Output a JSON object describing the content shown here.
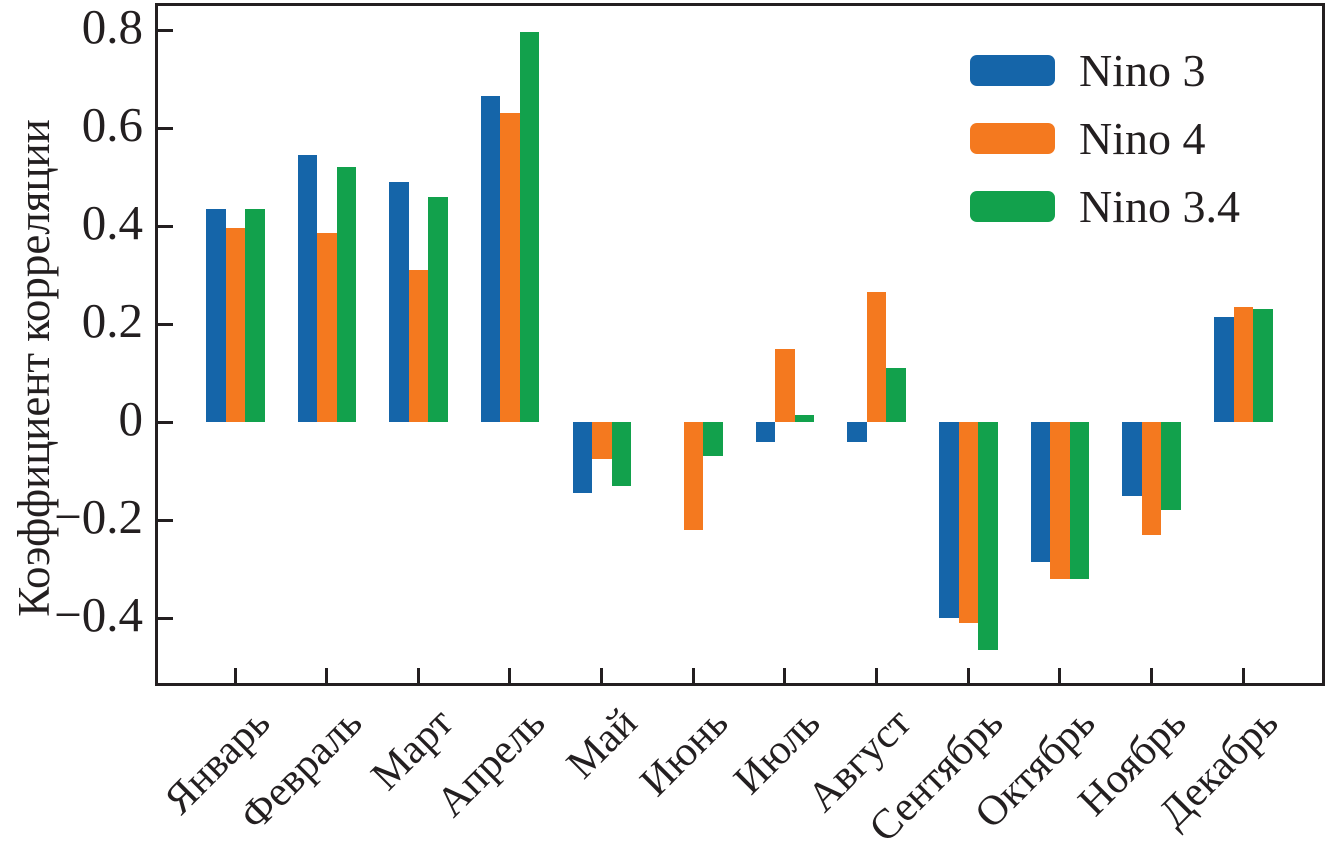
{
  "chart_data": {
    "type": "bar",
    "title": "",
    "xlabel": "",
    "ylabel": "Коэффициент корреляции",
    "categories": [
      "Январь",
      "Февраль",
      "Март",
      "Апрель",
      "Май",
      "Июнь",
      "Июль",
      "Август",
      "Сентябрь",
      "Октябрь",
      "Ноябрь",
      "Декабрь"
    ],
    "series": [
      {
        "name": "Nino 3",
        "color": "#1565a9",
        "values": [
          0.435,
          0.545,
          0.49,
          0.665,
          -0.145,
          0,
          -0.04,
          -0.04,
          -0.4,
          -0.285,
          -0.15,
          0.215
        ]
      },
      {
        "name": "Nino 4",
        "color": "#f4791f",
        "values": [
          0.395,
          0.385,
          0.31,
          0.63,
          -0.075,
          -0.22,
          0.15,
          0.265,
          -0.41,
          -0.32,
          -0.23,
          0.235
        ]
      },
      {
        "name": "Nino 3.4",
        "color": "#12a14c",
        "values": [
          0.435,
          0.52,
          0.46,
          0.795,
          -0.13,
          -0.07,
          0.015,
          0.11,
          -0.465,
          -0.32,
          -0.18,
          0.23
        ]
      }
    ],
    "ylim": [
      -0.54,
      0.85
    ],
    "yticks": {
      "values": [
        0.8,
        0.6,
        0.4,
        0.2,
        0,
        -0.2,
        -0.4
      ],
      "labels": [
        "0.8",
        "0.6",
        "0.4",
        "0.2",
        "0",
        "−0.2",
        "−0.4"
      ]
    },
    "grid": false,
    "legend_position": "top-right",
    "legend": [
      "Nino 3",
      "Nino 4",
      "Nino 3.4"
    ]
  }
}
